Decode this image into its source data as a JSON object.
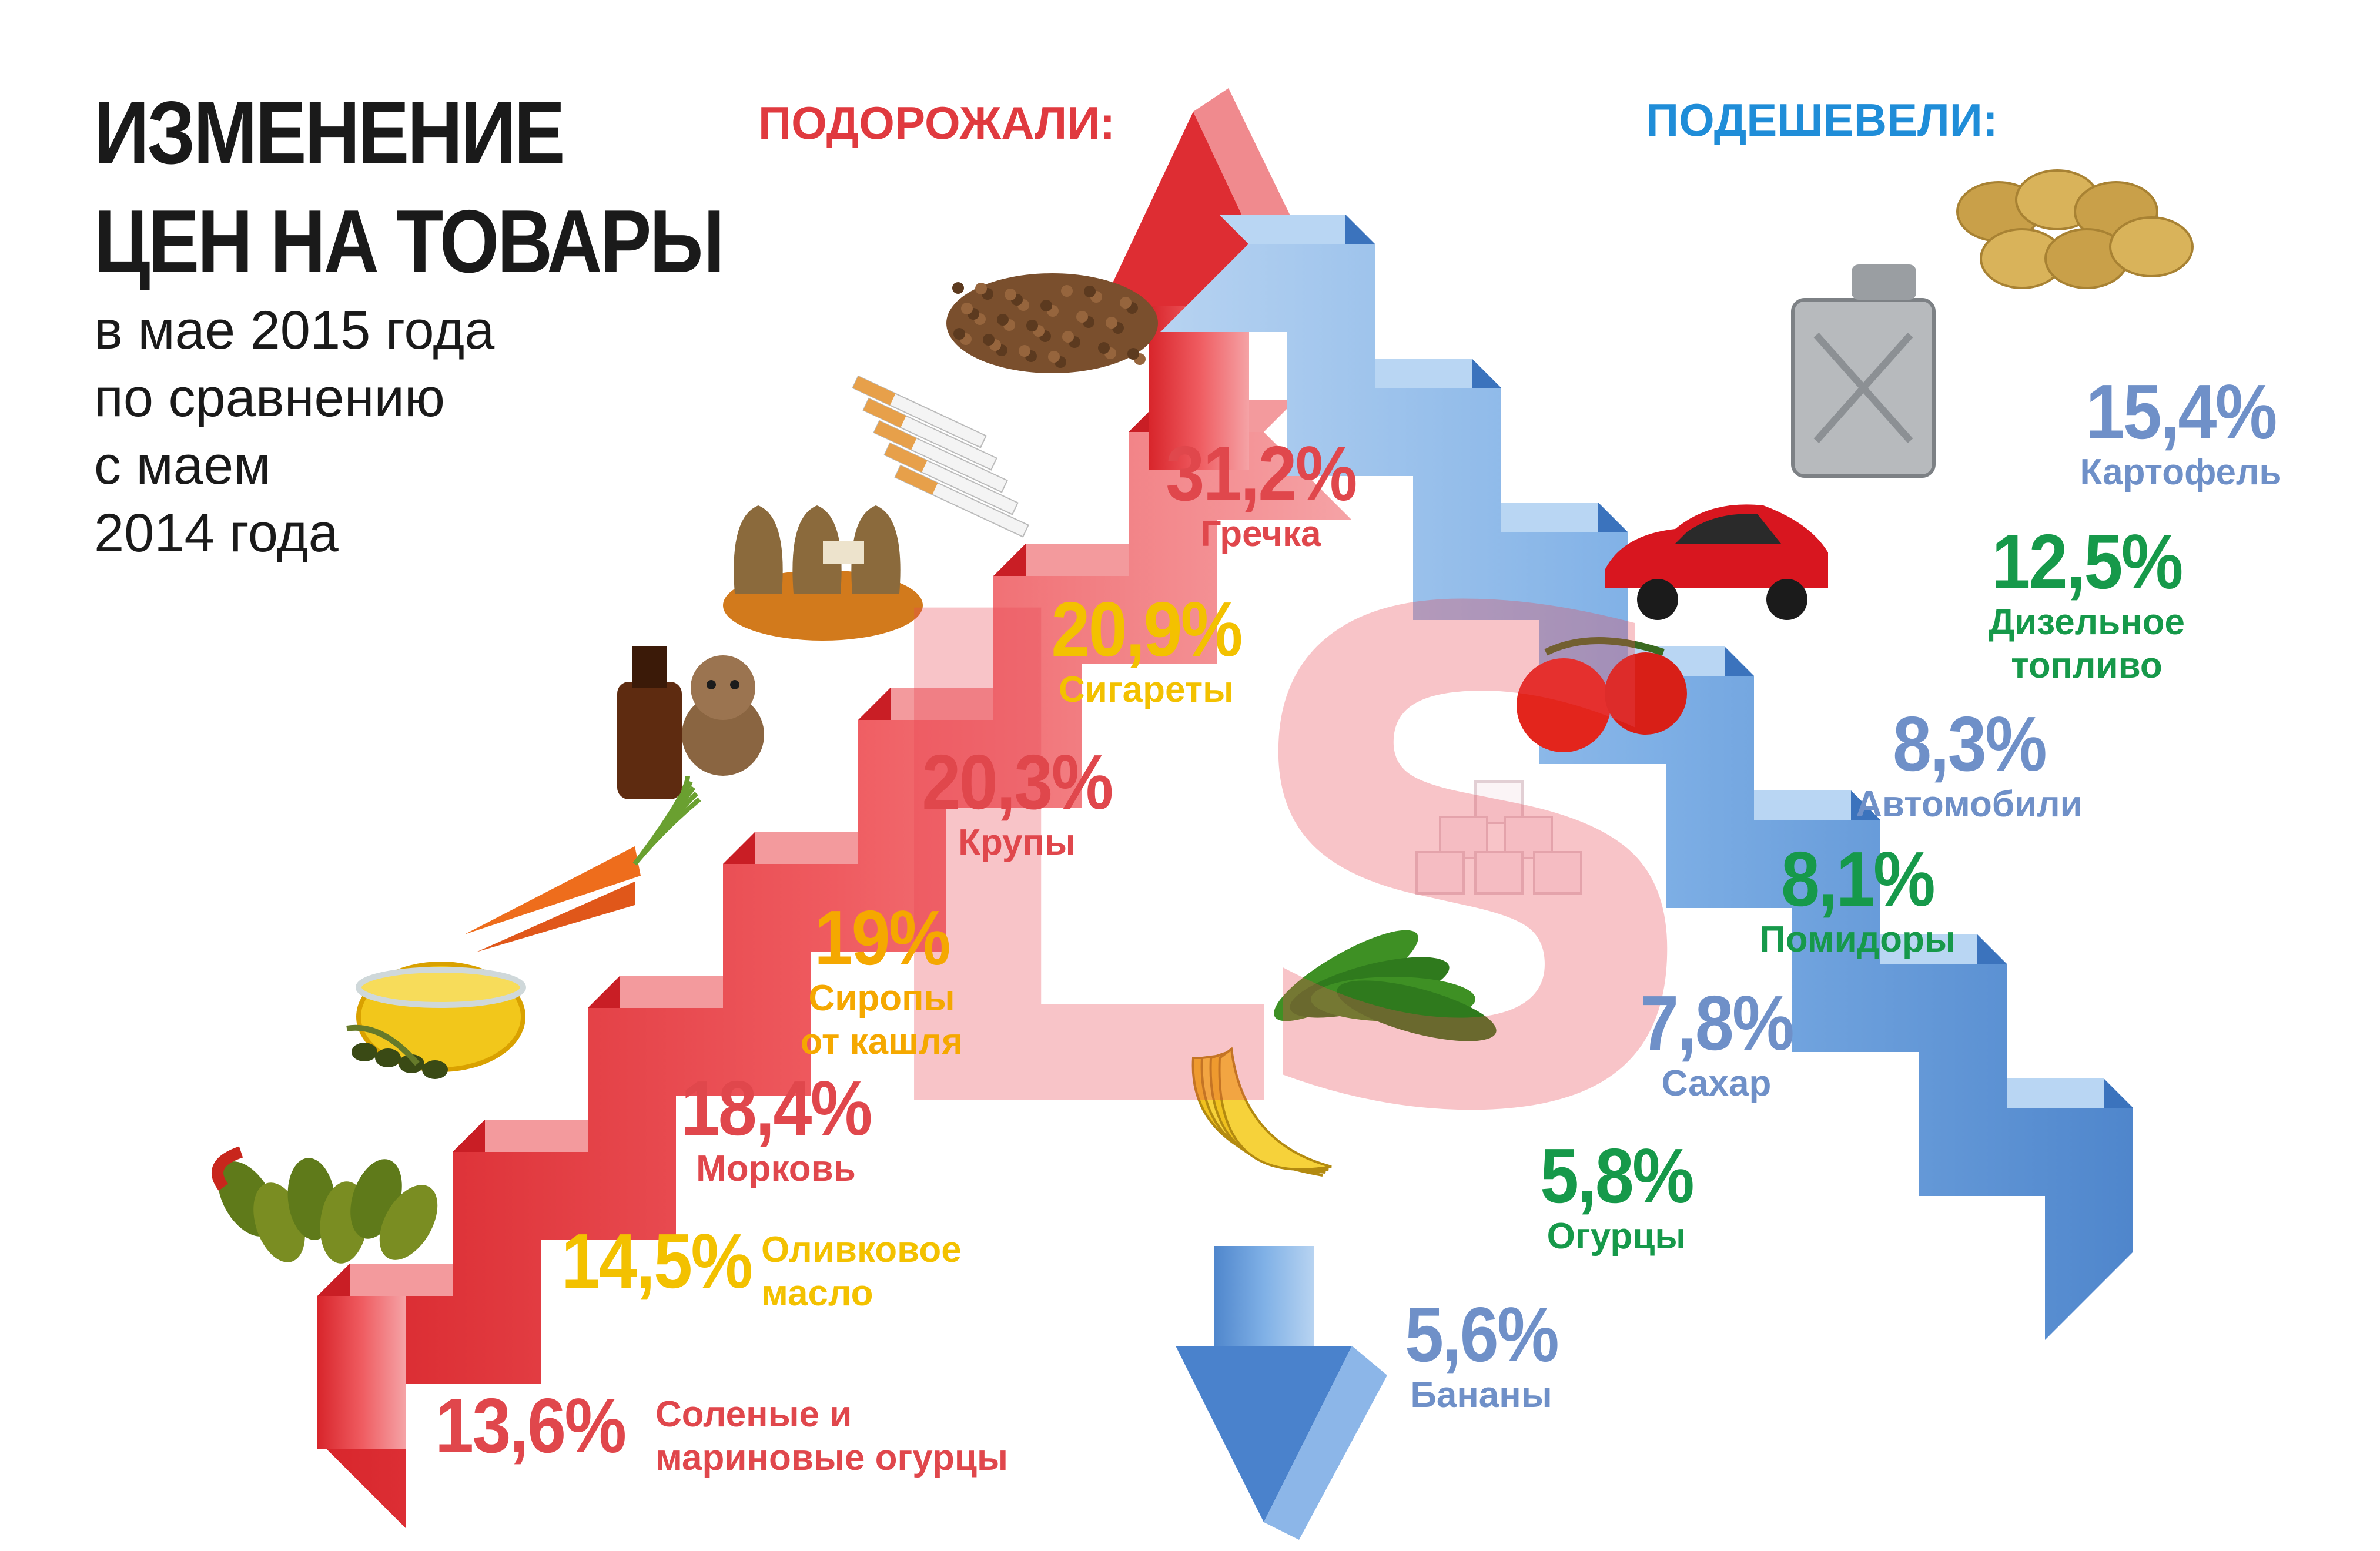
{
  "title": {
    "line1": "ИЗМЕНЕНИЕ",
    "line2": "ЦЕН НА ТОВАРЫ",
    "subtitle": [
      "в мае 2015 года",
      "по сравнению",
      "с маем",
      "2014 года"
    ]
  },
  "increased": {
    "heading": "ПОДОРОЖАЛИ:",
    "color": "#e03a3f",
    "items": [
      {
        "percent": "13,6%",
        "label": "Соленые и\nмариновые огурцы",
        "color": "#e0474c",
        "icon": "pickles-icon"
      },
      {
        "percent": "14,5%",
        "label": "Оливковое\nмасло",
        "color": "#f3c100",
        "icon": "olive-oil-icon"
      },
      {
        "percent": "18,4%",
        "label": "Морковь",
        "color": "#e0474c",
        "icon": "carrot-icon"
      },
      {
        "percent": "19%",
        "label": "Сиропы\nот кашля",
        "color": "#f5a800",
        "icon": "cough-syrup-icon"
      },
      {
        "percent": "20,3%",
        "label": "Крупы",
        "color": "#e0474c",
        "icon": "grain-sacks-icon"
      },
      {
        "percent": "20,9%",
        "label": "Сигареты",
        "color": "#f3c100",
        "icon": "cigarettes-icon"
      },
      {
        "percent": "31,2%",
        "label": "Гречка",
        "color": "#e0474c",
        "icon": "buckwheat-icon"
      }
    ]
  },
  "decreased": {
    "heading": "ПОДЕШЕВЕЛИ:",
    "color": "#1f8dd8",
    "items": [
      {
        "percent": "5,6%",
        "label": "Бананы",
        "color": "#6f90c8",
        "icon": "banana-icon"
      },
      {
        "percent": "5,8%",
        "label": "Огурцы",
        "color": "#16994a",
        "icon": "cucumber-icon"
      },
      {
        "percent": "7,8%",
        "label": "Сахар",
        "color": "#6f90c8",
        "icon": "sugar-cubes-icon"
      },
      {
        "percent": "8,1%",
        "label": "Помидоры",
        "color": "#16994a",
        "icon": "tomato-icon"
      },
      {
        "percent": "8,3%",
        "label": "Автомобили",
        "color": "#6f90c8",
        "icon": "car-icon"
      },
      {
        "percent": "12,5%",
        "label": "Дизельное\nтопливо",
        "color": "#16994a",
        "icon": "jerrycan-icon"
      },
      {
        "percent": "15,4%",
        "label": "Картофель",
        "color": "#6f90c8",
        "icon": "potato-icon"
      }
    ]
  },
  "watermark": "LS"
}
